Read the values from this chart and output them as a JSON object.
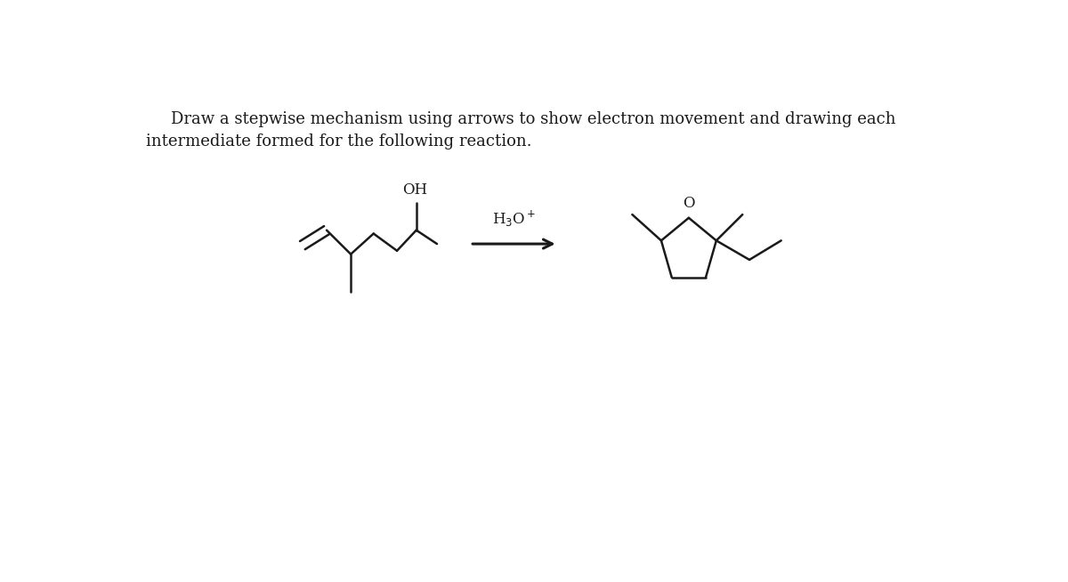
{
  "title_line1": "Draw a stepwise mechanism using arrows to show electron movement and drawing each",
  "title_line2": "intermediate formed for the following reaction.",
  "title_fontsize": 13,
  "background_color": "#ffffff",
  "line_color": "#1a1a1a",
  "text_color": "#1a1a1a",
  "lw": 1.8
}
